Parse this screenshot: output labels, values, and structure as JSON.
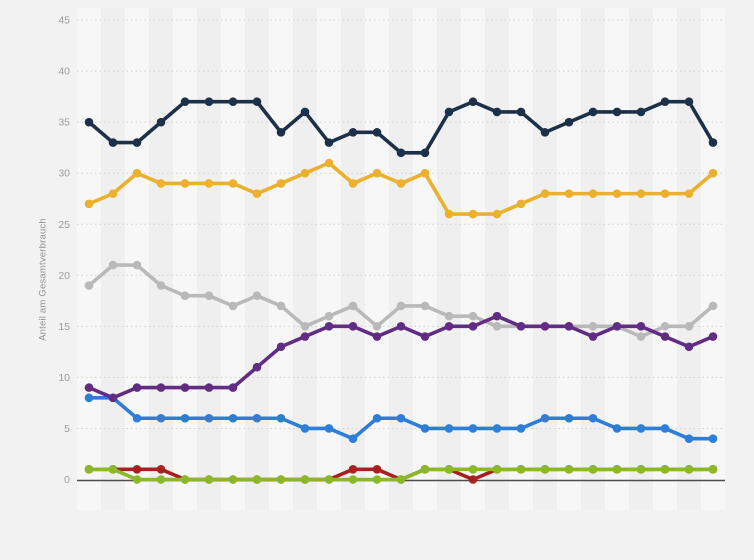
{
  "chart_data": {
    "type": "line",
    "title": "",
    "xlabel": "",
    "ylabel": "Anteil am Gesamtverbrauch",
    "ylim": [
      0,
      45
    ],
    "y_ticks": [
      0,
      5,
      10,
      15,
      20,
      25,
      30,
      35,
      40,
      45
    ],
    "x_labels_visible": false,
    "point_count": 27,
    "grid": "horizontal-dotted",
    "legend_position": "none",
    "background_stripes": true,
    "series": [
      {
        "name": "gray",
        "color": "#b9b9b9",
        "values": [
          19,
          21,
          21,
          19,
          18,
          18,
          17,
          18,
          17,
          15,
          16,
          17,
          15,
          17,
          17,
          16,
          16,
          15,
          15,
          15,
          15,
          15,
          15,
          14,
          15,
          15,
          17
        ]
      },
      {
        "name": "blue",
        "color": "#2e7dd9",
        "values": [
          8,
          8,
          6,
          6,
          6,
          6,
          6,
          6,
          6,
          5,
          5,
          4,
          6,
          6,
          5,
          5,
          5,
          5,
          5,
          6,
          6,
          6,
          5,
          5,
          5,
          4,
          4
        ]
      },
      {
        "name": "red",
        "color": "#a82021",
        "values": [
          1,
          1,
          1,
          1,
          0,
          0,
          0,
          0,
          0,
          0,
          0,
          1,
          1,
          0,
          1,
          1,
          0,
          1,
          1,
          1,
          1,
          1,
          1,
          1,
          1,
          1,
          1
        ]
      },
      {
        "name": "green",
        "color": "#8ab829",
        "values": [
          1,
          1,
          0,
          0,
          0,
          0,
          0,
          0,
          0,
          0,
          0,
          0,
          0,
          0,
          1,
          1,
          1,
          1,
          1,
          1,
          1,
          1,
          1,
          1,
          1,
          1,
          1
        ]
      },
      {
        "name": "purple",
        "color": "#612d82",
        "values": [
          9,
          8,
          9,
          9,
          9,
          9,
          9,
          11,
          13,
          14,
          15,
          15,
          14,
          15,
          14,
          15,
          15,
          16,
          15,
          15,
          15,
          14,
          15,
          15,
          14,
          13,
          14
        ]
      },
      {
        "name": "yellow",
        "color": "#ebb02e",
        "values": [
          27,
          28,
          30,
          29,
          29,
          29,
          29,
          28,
          29,
          30,
          31,
          29,
          30,
          29,
          30,
          26,
          26,
          26,
          27,
          28,
          28,
          28,
          28,
          28,
          28,
          28,
          30
        ]
      },
      {
        "name": "dark-blue",
        "color": "#1d3049",
        "values": [
          35,
          33,
          33,
          35,
          37,
          37,
          37,
          37,
          34,
          36,
          33,
          34,
          34,
          32,
          32,
          36,
          37,
          36,
          36,
          34,
          35,
          36,
          36,
          36,
          37,
          37,
          33
        ]
      }
    ],
    "axis_colors": {
      "tick_label": "#9b9b9b",
      "axis_title": "#8f8f8f",
      "gridline": "#d0d0d0",
      "zero_line": "#4d4d4d",
      "stripe_light": "#f7f7f7",
      "stripe_dark": "#efefef",
      "page_background": "#f2f2f2"
    }
  }
}
